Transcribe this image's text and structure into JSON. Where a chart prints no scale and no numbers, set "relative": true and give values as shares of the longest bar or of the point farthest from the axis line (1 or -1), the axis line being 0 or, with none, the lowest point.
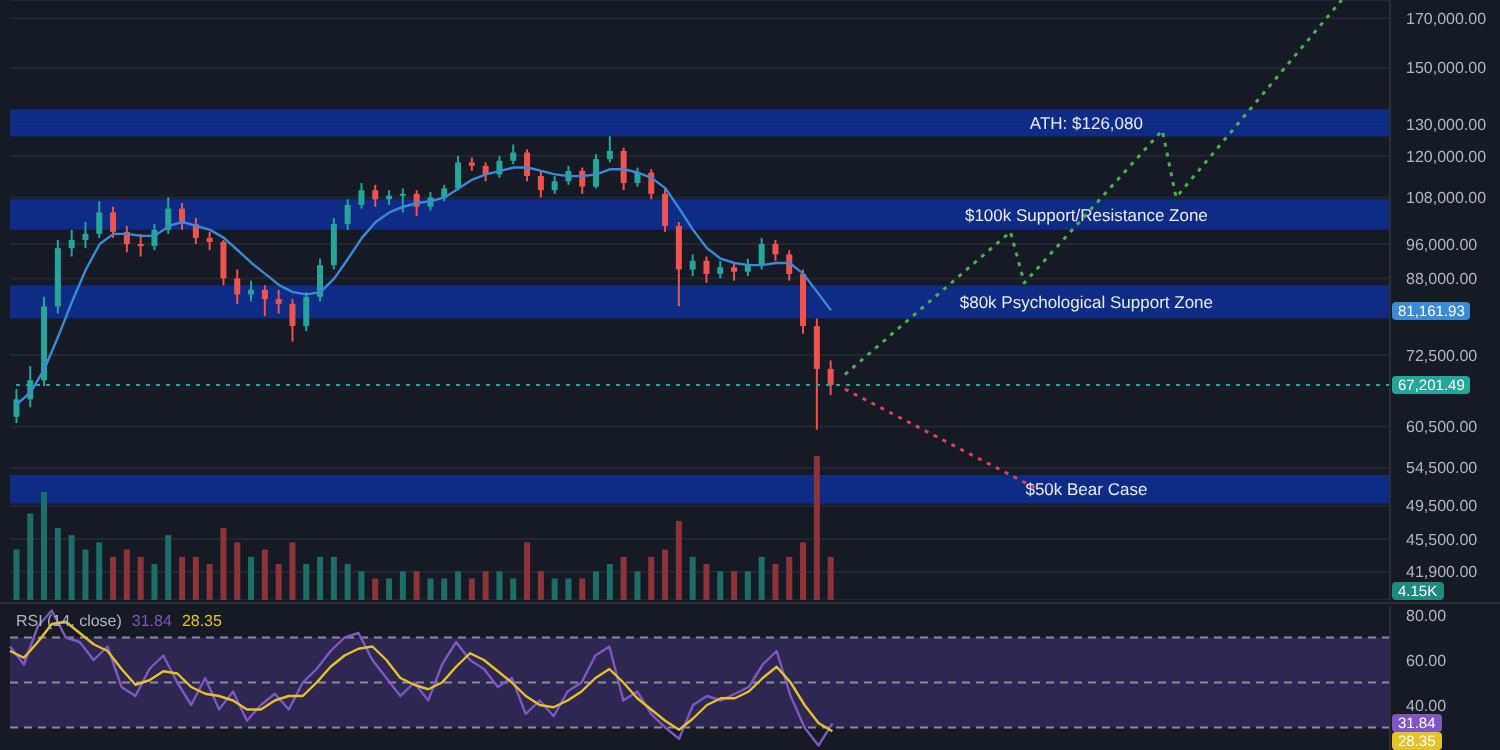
{
  "chart_data": [
    {
      "type": "candlestick",
      "log": true,
      "grid": "y",
      "categories": [
        null,
        null,
        null,
        null,
        null,
        null,
        null,
        null,
        null,
        null,
        null,
        null,
        null,
        null,
        null,
        null,
        null,
        null,
        null,
        null,
        null,
        null,
        null,
        null,
        null,
        null,
        null,
        null,
        null,
        null,
        null,
        null,
        null,
        null,
        null,
        null,
        null,
        null,
        null,
        null,
        null,
        null,
        null,
        null,
        null,
        null,
        null,
        null,
        null,
        null,
        null,
        null,
        null,
        null,
        null,
        null,
        null,
        null,
        null,
        null,
        null,
        null,
        null,
        null,
        null,
        null,
        null,
        null,
        null,
        null,
        null,
        null,
        null,
        null,
        null,
        null,
        null,
        null,
        null,
        null,
        null,
        null,
        null,
        null,
        null,
        null,
        null,
        null,
        null,
        null,
        null,
        null,
        null,
        null,
        null,
        null,
        null,
        null,
        null,
        null
      ],
      "ohlc": [
        [
          62000,
          66500,
          61000,
          64800
        ],
        [
          64800,
          70500,
          63500,
          68000
        ],
        [
          68000,
          84000,
          67000,
          82000
        ],
        [
          82000,
          97000,
          80500,
          95000
        ],
        [
          95000,
          99500,
          93000,
          97000
        ],
        [
          97000,
          101500,
          95000,
          98500
        ],
        [
          98500,
          107000,
          97500,
          104000
        ],
        [
          104000,
          105500,
          97500,
          99000
        ],
        [
          99000,
          100500,
          94000,
          96000
        ],
        [
          96000,
          98500,
          93000,
          95500
        ],
        [
          95500,
          101000,
          94500,
          99500
        ],
        [
          99500,
          108000,
          98500,
          105000
        ],
        [
          105000,
          106500,
          99500,
          101000
        ],
        [
          101000,
          102500,
          96000,
          97500
        ],
        [
          97500,
          99000,
          94500,
          96500
        ],
        [
          96500,
          97000,
          86500,
          88000
        ],
        [
          88000,
          90000,
          82500,
          84500
        ],
        [
          84500,
          87500,
          83000,
          85500
        ],
        [
          85500,
          86500,
          80000,
          83500
        ],
        [
          83500,
          85500,
          80500,
          82500
        ],
        [
          82500,
          83500,
          75000,
          78000
        ],
        [
          78000,
          85000,
          77000,
          84000
        ],
        [
          84000,
          92500,
          83000,
          91000
        ],
        [
          91000,
          102500,
          90000,
          101000
        ],
        [
          101000,
          107500,
          99500,
          106000
        ],
        [
          106000,
          112000,
          105000,
          110000
        ],
        [
          110000,
          111500,
          105500,
          107500
        ],
        [
          107500,
          110000,
          106000,
          108500
        ],
        [
          108500,
          110500,
          104000,
          109000
        ],
        [
          109000,
          110000,
          103000,
          105500
        ],
        [
          105500,
          109500,
          104500,
          108000
        ],
        [
          108000,
          111500,
          107000,
          110500
        ],
        [
          110500,
          120000,
          110000,
          118000
        ],
        [
          118000,
          119500,
          115500,
          117000
        ],
        [
          117000,
          118000,
          112500,
          114500
        ],
        [
          114500,
          120000,
          113500,
          118500
        ],
        [
          118500,
          123500,
          117500,
          121000
        ],
        [
          121000,
          122000,
          112500,
          114000
        ],
        [
          114000,
          115500,
          108000,
          110000
        ],
        [
          110000,
          114000,
          109000,
          112500
        ],
        [
          112500,
          117000,
          111500,
          115500
        ],
        [
          115500,
          116500,
          109000,
          111000
        ],
        [
          111000,
          120500,
          110500,
          119000
        ],
        [
          119000,
          126080,
          118000,
          121500
        ],
        [
          121500,
          122500,
          110000,
          112000
        ],
        [
          112000,
          116500,
          111000,
          115000
        ],
        [
          115000,
          116000,
          107500,
          109000
        ],
        [
          109000,
          110500,
          99000,
          100500
        ],
        [
          100500,
          101500,
          82000,
          90000
        ],
        [
          90000,
          93500,
          88500,
          92000
        ],
        [
          92000,
          93000,
          87000,
          89000
        ],
        [
          89000,
          92000,
          88000,
          90500
        ],
        [
          90500,
          91500,
          87500,
          89500
        ],
        [
          89500,
          92500,
          88500,
          91000
        ],
        [
          91000,
          97500,
          90000,
          96000
        ],
        [
          96000,
          97000,
          92000,
          93500
        ],
        [
          93500,
          94500,
          87500,
          89000
        ],
        [
          89000,
          90000,
          76500,
          78000
        ],
        [
          78000,
          79500,
          60000,
          70000
        ],
        [
          70000,
          71500,
          65500,
          67201.49
        ],
        null,
        null,
        null,
        null,
        null,
        null,
        null,
        null,
        null,
        null,
        null,
        null,
        null,
        null,
        null,
        null,
        null,
        null,
        null,
        null,
        null,
        null,
        null,
        null,
        null,
        null,
        null,
        null,
        null,
        null,
        null,
        null,
        null,
        null,
        null,
        null,
        null,
        null,
        null,
        null
      ],
      "colors": [
        "#26a69a",
        "#26a69a",
        "#26a69a",
        "#26a69a",
        "#26a69a",
        "#26a69a",
        "#26a69a",
        "#ef5350",
        "#ef5350",
        "#ef5350",
        "#26a69a",
        "#26a69a",
        "#ef5350",
        "#ef5350",
        "#ef5350",
        "#ef5350",
        "#ef5350",
        "#26a69a",
        "#ef5350",
        "#ef5350",
        "#ef5350",
        "#26a69a",
        "#26a69a",
        "#26a69a",
        "#26a69a",
        "#26a69a",
        "#ef5350",
        "#26a69a",
        "#26a69a",
        "#ef5350",
        "#26a69a",
        "#26a69a",
        "#26a69a",
        "#ef5350",
        "#ef5350",
        "#26a69a",
        "#26a69a",
        "#ef5350",
        "#ef5350",
        "#26a69a",
        "#26a69a",
        "#ef5350",
        "#26a69a",
        "#26a69a",
        "#ef5350",
        "#26a69a",
        "#ef5350",
        "#ef5350",
        "#ef5350",
        "#26a69a",
        "#ef5350",
        "#26a69a",
        "#ef5350",
        "#26a69a",
        "#26a69a",
        "#ef5350",
        "#ef5350",
        "#ef5350",
        "#ef5350",
        "#ef5350",
        null,
        null,
        null,
        null,
        null,
        null,
        null,
        null,
        null,
        null,
        null,
        null,
        null,
        null,
        null,
        null,
        null,
        null,
        null,
        null,
        null,
        null,
        null,
        null,
        null,
        null,
        null,
        null,
        null,
        null,
        null,
        null,
        null,
        null,
        null,
        null,
        null,
        null,
        null,
        null
      ],
      "series": [
        {
          "type": "line",
          "color": "#3a8ad6",
          "line_style": "solid",
          "values": [
            64000,
            66000,
            70000,
            76000,
            83000,
            90000,
            96000,
            98500,
            98500,
            98000,
            98000,
            100500,
            101500,
            100500,
            99500,
            97500,
            94500,
            91500,
            89000,
            86500,
            85000,
            84500,
            85000,
            88000,
            92500,
            97500,
            101500,
            104000,
            105500,
            106500,
            107000,
            108000,
            110500,
            113000,
            114500,
            115500,
            116500,
            116500,
            115500,
            114500,
            114000,
            114000,
            114500,
            116000,
            116000,
            115000,
            113500,
            110500,
            105000,
            99500,
            95000,
            92500,
            91500,
            91000,
            91000,
            91500,
            91500,
            89000,
            85000,
            81161.93,
            null,
            null,
            null,
            null,
            null,
            null,
            null,
            null,
            null,
            null,
            null,
            null,
            null,
            null,
            null,
            null,
            null,
            null,
            null,
            null,
            null,
            null,
            null,
            null,
            null,
            null,
            null,
            null,
            null,
            null,
            null,
            null,
            null,
            null,
            null,
            null,
            null,
            null,
            null,
            null
          ]
        },
        {
          "type": "line",
          "color": "#4caf50",
          "line_style": "dotted",
          "values": [
            null,
            null,
            null,
            null,
            null,
            null,
            null,
            null,
            null,
            null,
            null,
            null,
            null,
            null,
            null,
            null,
            null,
            null,
            null,
            null,
            null,
            null,
            null,
            null,
            null,
            null,
            null,
            null,
            null,
            null,
            null,
            null,
            null,
            null,
            null,
            null,
            null,
            null,
            null,
            null,
            null,
            null,
            null,
            null,
            null,
            null,
            null,
            null,
            null,
            null,
            null,
            null,
            null,
            null,
            null,
            null,
            null,
            null,
            null,
            null,
            69000,
            null,
            null,
            null,
            null,
            null,
            null,
            null,
            null,
            null,
            null,
            null,
            99000,
            87000,
            null,
            null,
            null,
            null,
            null,
            null,
            null,
            null,
            null,
            128000,
            108000,
            null,
            null,
            null,
            null,
            null,
            null,
            null,
            null,
            null,
            null,
            null,
            178000,
            null,
            null,
            null
          ]
        },
        {
          "type": "line",
          "color": "#e0405a",
          "line_style": "dotted",
          "values": [
            null,
            null,
            null,
            null,
            null,
            null,
            null,
            null,
            null,
            null,
            null,
            null,
            null,
            null,
            null,
            null,
            null,
            null,
            null,
            null,
            null,
            null,
            null,
            null,
            null,
            null,
            null,
            null,
            null,
            null,
            null,
            null,
            null,
            null,
            null,
            null,
            null,
            null,
            null,
            null,
            null,
            null,
            null,
            null,
            null,
            null,
            null,
            null,
            null,
            null,
            null,
            null,
            null,
            null,
            null,
            null,
            null,
            null,
            null,
            null,
            66500,
            null,
            null,
            null,
            null,
            null,
            null,
            null,
            null,
            null,
            null,
            null,
            null,
            null,
            51600,
            null,
            null,
            null,
            null,
            null,
            null,
            null,
            null,
            null,
            null,
            null,
            null,
            null,
            null,
            null,
            null,
            null,
            null,
            null,
            null,
            null,
            null,
            null,
            null,
            null
          ]
        }
      ],
      "ylim": [
        39000,
        178000
      ],
      "yticks": [
        {
          "value": 170000,
          "label": "170,000.00"
        },
        {
          "value": 150000,
          "label": "150,000.00"
        },
        {
          "value": 130000,
          "label": "130,000.00"
        },
        {
          "value": 120000,
          "label": "120,000.00"
        },
        {
          "value": 108000,
          "label": "108,000.00"
        },
        {
          "value": 96000,
          "label": "96,000.00"
        },
        {
          "value": 88000,
          "label": "88,000.00"
        },
        {
          "value": 72500,
          "label": "72,500.00"
        },
        {
          "value": 60500,
          "label": "60,500.00"
        },
        {
          "value": 54500,
          "label": "54,500.00"
        },
        {
          "value": 49500,
          "label": "49,500.00"
        },
        {
          "value": 45500,
          "label": "45,500.00"
        },
        {
          "value": 41900,
          "label": "41,900.00"
        }
      ],
      "bands": [
        {
          "axis": "y",
          "from": 126000,
          "to": 135000,
          "label": "ATH: $126,080",
          "color": "#0d2f9f"
        },
        {
          "axis": "y",
          "from": 99500,
          "to": 107500,
          "label": "$100k Support/Resistance Zone",
          "color": "#0d2f9f"
        },
        {
          "axis": "y",
          "from": 79500,
          "to": 86500,
          "label": "$80k Psychological Support Zone",
          "color": "#0d2f9f"
        },
        {
          "axis": "y",
          "from": 49800,
          "to": 53500,
          "label": "$50k Bear Case",
          "color": "#0d2f9f"
        }
      ],
      "ref_lines": [
        {
          "axis": "y",
          "value": 67201.49,
          "label": "67,201.49",
          "color": "#26a69a",
          "line_style": "dotted"
        }
      ],
      "annotations": [
        "81,161.93"
      ]
    },
    {
      "type": "bar",
      "relative": true,
      "categories": [
        null,
        null,
        null,
        null,
        null,
        null,
        null,
        null,
        null,
        null,
        null,
        null,
        null,
        null,
        null,
        null,
        null,
        null,
        null,
        null,
        null,
        null,
        null,
        null,
        null,
        null,
        null,
        null,
        null,
        null,
        null,
        null,
        null,
        null,
        null,
        null,
        null,
        null,
        null,
        null,
        null,
        null,
        null,
        null,
        null,
        null,
        null,
        null,
        null,
        null,
        null,
        null,
        null,
        null,
        null,
        null,
        null,
        null,
        null,
        null,
        null,
        null,
        null,
        null,
        null,
        null,
        null,
        null,
        null,
        null,
        null,
        null,
        null,
        null,
        null,
        null,
        null,
        null,
        null,
        null,
        null,
        null,
        null,
        null,
        null,
        null,
        null,
        null,
        null,
        null,
        null,
        null,
        null,
        null,
        null,
        null,
        null,
        null,
        null,
        null
      ],
      "values": [
        0.35,
        0.6,
        0.75,
        0.5,
        0.45,
        0.35,
        0.4,
        0.3,
        0.35,
        0.3,
        0.25,
        0.45,
        0.3,
        0.3,
        0.25,
        0.5,
        0.4,
        0.3,
        0.35,
        0.25,
        0.4,
        0.25,
        0.3,
        0.3,
        0.25,
        0.2,
        0.15,
        0.15,
        0.2,
        0.2,
        0.15,
        0.15,
        0.2,
        0.15,
        0.2,
        0.2,
        0.15,
        0.4,
        0.2,
        0.15,
        0.15,
        0.15,
        0.2,
        0.25,
        0.3,
        0.2,
        0.3,
        0.35,
        0.55,
        0.3,
        0.25,
        0.2,
        0.2,
        0.2,
        0.3,
        0.25,
        0.3,
        0.4,
        1,
        0.3,
        null,
        null,
        null,
        null,
        null,
        null,
        null,
        null,
        null,
        null,
        null,
        null,
        null,
        null,
        null,
        null,
        null,
        null,
        null,
        null,
        null,
        null,
        null,
        null,
        null,
        null,
        null,
        null,
        null,
        null,
        null,
        null,
        null,
        null,
        null,
        null,
        null,
        null,
        null,
        null
      ],
      "colors": [
        "#1e6e68",
        "#1e6e68",
        "#1e6e68",
        "#1e6e68",
        "#1e6e68",
        "#1e6e68",
        "#1e6e68",
        "#8c3437",
        "#8c3437",
        "#8c3437",
        "#1e6e68",
        "#1e6e68",
        "#8c3437",
        "#8c3437",
        "#8c3437",
        "#8c3437",
        "#8c3437",
        "#1e6e68",
        "#8c3437",
        "#8c3437",
        "#8c3437",
        "#1e6e68",
        "#1e6e68",
        "#1e6e68",
        "#1e6e68",
        "#1e6e68",
        "#8c3437",
        "#1e6e68",
        "#1e6e68",
        "#8c3437",
        "#1e6e68",
        "#1e6e68",
        "#1e6e68",
        "#8c3437",
        "#8c3437",
        "#1e6e68",
        "#1e6e68",
        "#8c3437",
        "#8c3437",
        "#1e6e68",
        "#1e6e68",
        "#8c3437",
        "#1e6e68",
        "#1e6e68",
        "#8c3437",
        "#1e6e68",
        "#8c3437",
        "#8c3437",
        "#8c3437",
        "#1e6e68",
        "#8c3437",
        "#1e6e68",
        "#8c3437",
        "#1e6e68",
        "#1e6e68",
        "#8c3437",
        "#8c3437",
        "#8c3437",
        "#8c3437",
        "#8c3437",
        null,
        null,
        null,
        null,
        null,
        null,
        null,
        null,
        null,
        null,
        null,
        null,
        null,
        null,
        null,
        null,
        null,
        null,
        null,
        null,
        null,
        null,
        null,
        null,
        null,
        null,
        null,
        null,
        null,
        null,
        null,
        null,
        null,
        null,
        null,
        null,
        null,
        null,
        null,
        null
      ],
      "annotations": [
        "4.15K"
      ]
    },
    {
      "type": "line",
      "title": "RSI (14, close)",
      "categories": [
        null,
        null,
        null,
        null,
        null,
        null,
        null,
        null,
        null,
        null,
        null,
        null,
        null,
        null,
        null,
        null,
        null,
        null,
        null,
        null,
        null,
        null,
        null,
        null,
        null,
        null,
        null,
        null,
        null,
        null,
        null,
        null,
        null,
        null,
        null,
        null,
        null,
        null,
        null,
        null,
        null,
        null,
        null,
        null,
        null,
        null,
        null,
        null,
        null,
        null,
        null,
        null,
        null,
        null,
        null,
        null,
        null,
        null,
        null,
        null,
        null,
        null,
        null,
        null,
        null,
        null,
        null,
        null,
        null,
        null,
        null,
        null,
        null,
        null,
        null,
        null,
        null,
        null,
        null,
        null,
        null,
        null,
        null,
        null,
        null,
        null,
        null,
        null,
        null,
        null,
        null,
        null,
        null,
        null,
        null,
        null,
        null,
        null,
        null,
        null
      ],
      "series": [
        {
          "color": "#7e57c2",
          "values": [
            66,
            58,
            75,
            82,
            70,
            68,
            60,
            66,
            48,
            44,
            56,
            62,
            50,
            40,
            52,
            38,
            46,
            33,
            40,
            45,
            38,
            50,
            56,
            64,
            70,
            72,
            60,
            52,
            44,
            50,
            42,
            58,
            68,
            60,
            56,
            48,
            52,
            36,
            42,
            35,
            46,
            50,
            62,
            66,
            42,
            46,
            36,
            30,
            25,
            40,
            44,
            42,
            45,
            48,
            58,
            64,
            44,
            30,
            22,
            31.84,
            null,
            null,
            null,
            null,
            null,
            null,
            null,
            null,
            null,
            null,
            null,
            null,
            null,
            null,
            null,
            null,
            null,
            null,
            null,
            null,
            null,
            null,
            null,
            null,
            null,
            null,
            null,
            null,
            null,
            null,
            null,
            null,
            null,
            null,
            null,
            null,
            null,
            null,
            null,
            null
          ]
        },
        {
          "color": "#e6c229",
          "values": [
            64,
            61,
            68,
            76,
            77,
            72,
            67,
            64,
            56,
            49,
            51,
            55,
            54,
            48,
            45,
            44,
            42,
            38,
            38,
            42,
            44,
            44,
            50,
            57,
            62,
            65,
            66,
            60,
            52,
            49,
            47,
            50,
            57,
            63,
            60,
            55,
            50,
            44,
            40,
            39,
            42,
            46,
            52,
            56,
            50,
            43,
            38,
            33,
            29,
            34,
            40,
            43,
            43,
            46,
            52,
            57,
            50,
            40,
            32,
            28.35,
            null,
            null,
            null,
            null,
            null,
            null,
            null,
            null,
            null,
            null,
            null,
            null,
            null,
            null,
            null,
            null,
            null,
            null,
            null,
            null,
            null,
            null,
            null,
            null,
            null,
            null,
            null,
            null,
            null,
            null,
            null,
            null,
            null,
            null,
            null,
            null,
            null,
            null,
            null,
            null
          ]
        }
      ],
      "ylim": [
        20,
        84
      ],
      "yticks": [
        {
          "value": 80,
          "label": "80.00"
        },
        {
          "value": 60,
          "label": "60.00"
        },
        {
          "value": 40,
          "label": "40.00"
        }
      ],
      "bands": [
        {
          "axis": "y",
          "from": 30,
          "to": 70,
          "color": "#2e2752"
        }
      ],
      "ref_lines": [
        {
          "axis": "y",
          "value": 70,
          "color": "#8a8d99",
          "line_style": "dashed"
        },
        {
          "axis": "y",
          "value": 50,
          "color": "#8a8d99",
          "line_style": "dashed"
        },
        {
          "axis": "y",
          "value": 30,
          "color": "#8a8d99",
          "line_style": "dashed"
        }
      ],
      "annotations": [
        "31.84",
        "28.35"
      ]
    }
  ]
}
